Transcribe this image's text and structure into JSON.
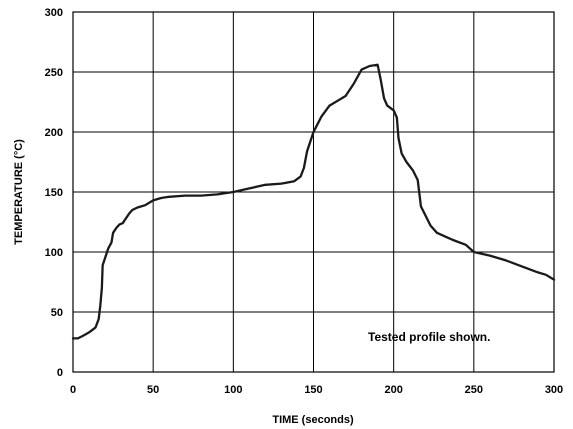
{
  "chart_data": {
    "type": "line",
    "title": "",
    "xlabel": "TIME (seconds)",
    "ylabel": "TEMPERATURE (°C)",
    "xlim": [
      0,
      300
    ],
    "ylim": [
      0,
      300
    ],
    "xticks": [
      0,
      50,
      100,
      150,
      200,
      250,
      300
    ],
    "yticks": [
      0,
      50,
      100,
      150,
      200,
      250,
      300
    ],
    "grid": true,
    "legend": "none",
    "annotation": "Tested profile shown.",
    "line_color": "#1a1a1a",
    "series": [
      {
        "points": [
          [
            0,
            28
          ],
          [
            3,
            28
          ],
          [
            6,
            30
          ],
          [
            10,
            33
          ],
          [
            14,
            37
          ],
          [
            16,
            44
          ],
          [
            17,
            55
          ],
          [
            18,
            70
          ],
          [
            18.5,
            89
          ],
          [
            20,
            95
          ],
          [
            22,
            103
          ],
          [
            24,
            108
          ],
          [
            25,
            116
          ],
          [
            27,
            120
          ],
          [
            29,
            123
          ],
          [
            31,
            124
          ],
          [
            33,
            128
          ],
          [
            35,
            132
          ],
          [
            37,
            135
          ],
          [
            40,
            137
          ],
          [
            45,
            139
          ],
          [
            50,
            143
          ],
          [
            55,
            145
          ],
          [
            60,
            146
          ],
          [
            70,
            147
          ],
          [
            80,
            147
          ],
          [
            90,
            148
          ],
          [
            100,
            150
          ],
          [
            110,
            153
          ],
          [
            120,
            156
          ],
          [
            130,
            157
          ],
          [
            138,
            159
          ],
          [
            142,
            163
          ],
          [
            144,
            170
          ],
          [
            145,
            177
          ],
          [
            146,
            184
          ],
          [
            148,
            192
          ],
          [
            150,
            200
          ],
          [
            155,
            213
          ],
          [
            160,
            222
          ],
          [
            165,
            226
          ],
          [
            170,
            230
          ],
          [
            175,
            240
          ],
          [
            180,
            252
          ],
          [
            185,
            255
          ],
          [
            190,
            256
          ],
          [
            192,
            243
          ],
          [
            194,
            228
          ],
          [
            196,
            222
          ],
          [
            200,
            218
          ],
          [
            202,
            212
          ],
          [
            203,
            195
          ],
          [
            205,
            182
          ],
          [
            208,
            175
          ],
          [
            212,
            168
          ],
          [
            215,
            160
          ],
          [
            217,
            138
          ],
          [
            220,
            130
          ],
          [
            223,
            122
          ],
          [
            227,
            116
          ],
          [
            232,
            113
          ],
          [
            237,
            110
          ],
          [
            245,
            106
          ],
          [
            250,
            100
          ],
          [
            260,
            97
          ],
          [
            270,
            93
          ],
          [
            280,
            88
          ],
          [
            290,
            83
          ],
          [
            295,
            81
          ],
          [
            300,
            77
          ]
        ]
      }
    ]
  }
}
